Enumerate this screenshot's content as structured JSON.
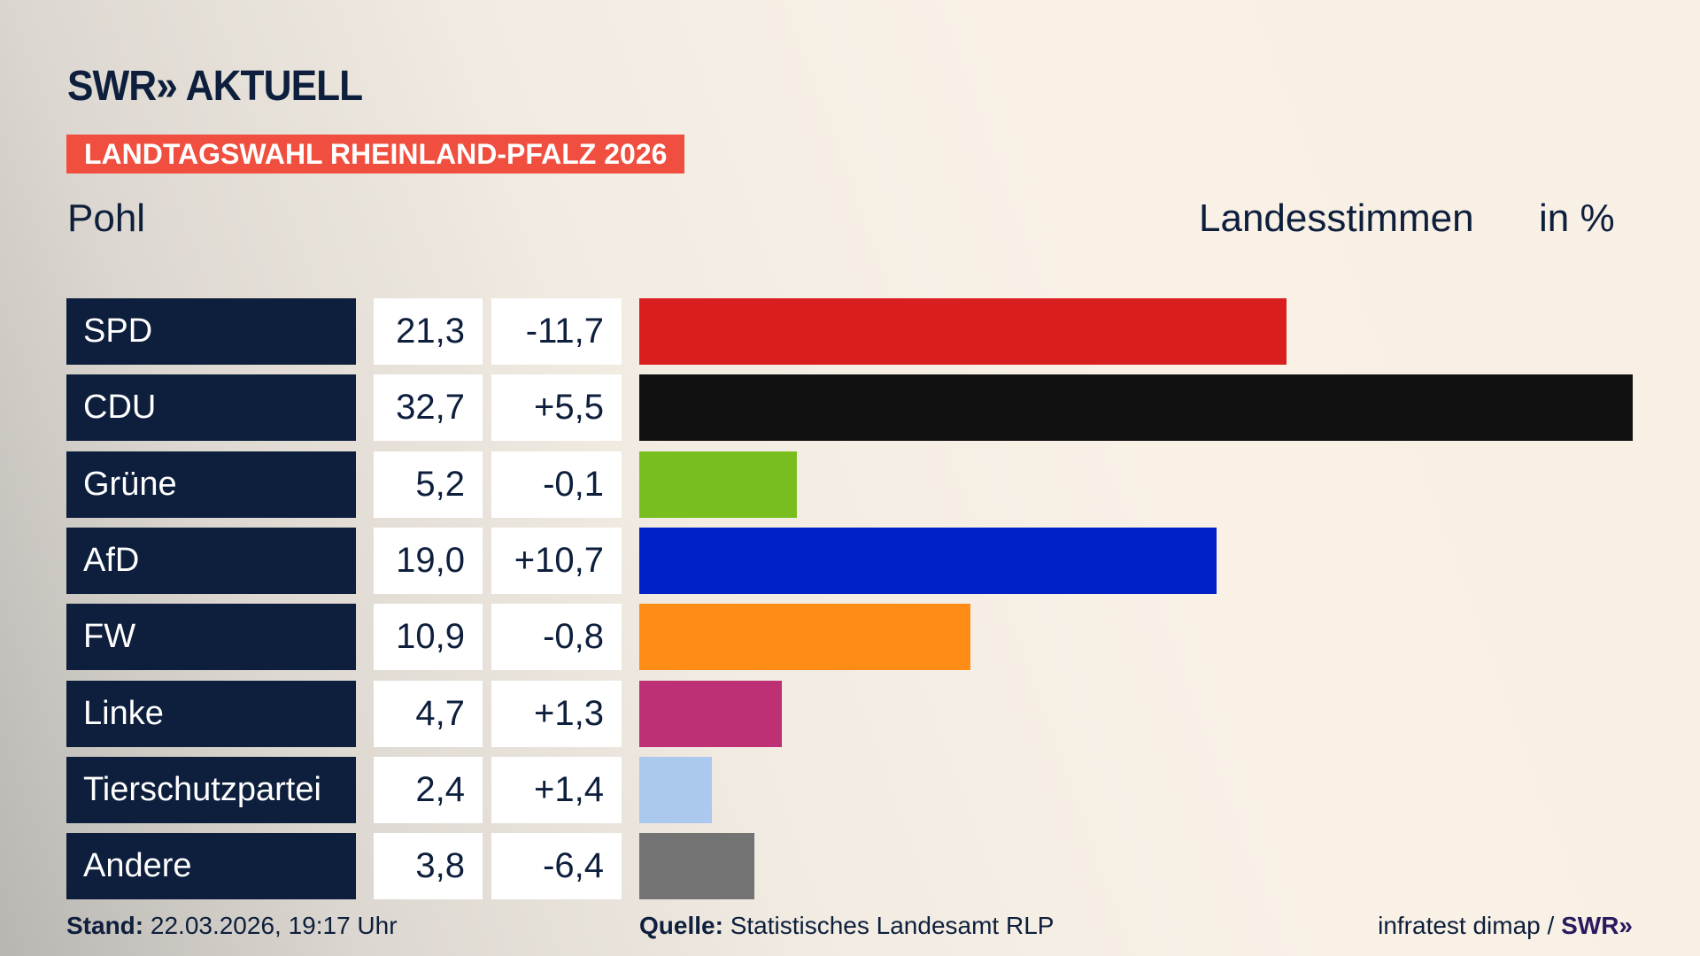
{
  "header": {
    "logo": "SWR» AKTUELL",
    "banner": "LANDTAGSWAHL RHEINLAND-PFALZ 2026",
    "constituency": "Pohl",
    "measure": "Landesstimmen",
    "unit": "in %"
  },
  "chart_data": {
    "type": "bar",
    "orientation": "horizontal",
    "xlim": [
      0,
      32.7
    ],
    "categories": [
      "SPD",
      "CDU",
      "Grüne",
      "AfD",
      "FW",
      "Linke",
      "Tierschutzpartei",
      "Andere"
    ],
    "values": [
      "21,3",
      "32,7",
      "5,2",
      "19,0",
      "10,9",
      "4,7",
      "2,4",
      "3,8"
    ],
    "numeric_values": [
      21.3,
      32.7,
      5.2,
      19.0,
      10.9,
      4.7,
      2.4,
      3.8
    ],
    "changes": [
      "-11,7",
      "+5,5",
      "-0,1",
      "+10,7",
      "-0,8",
      "+1,3",
      "+1,4",
      "-6,4"
    ],
    "colors": [
      "#d81e1e",
      "#111111",
      "#78be1e",
      "#0021c8",
      "#ff8c17",
      "#bd3075",
      "#abc8ef",
      "#737373"
    ]
  },
  "footer": {
    "stand_label": "Stand:",
    "stand_value": " 22.03.2026, 19:17 Uhr",
    "source_label": "Quelle:",
    "source_value": " Statistisches Landesamt RLP",
    "credit": "infratest dimap / ",
    "credit_logo": "SWR»"
  }
}
